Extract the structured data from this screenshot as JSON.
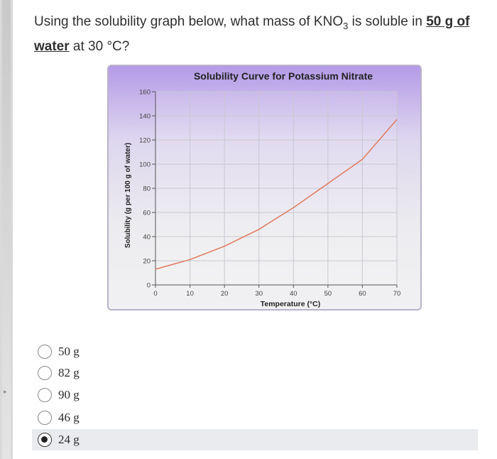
{
  "question": {
    "part1": "Using the solubility graph below, what mass of KNO",
    "subscript": "3",
    "part2": " is soluble in ",
    "emphasis": "50 g of water",
    "part3": " at 30 °C?"
  },
  "answers": [
    {
      "label": "50 g",
      "selected": false
    },
    {
      "label": "82 g",
      "selected": false
    },
    {
      "label": "90 g",
      "selected": false
    },
    {
      "label": "46 g",
      "selected": false
    },
    {
      "label": "24 g",
      "selected": true
    }
  ],
  "chart_data": {
    "type": "line",
    "title": "Solubility Curve for Potassium Nitrate",
    "xlabel": "Temperature (°C)",
    "ylabel": "Solubility (g per 100 g of water)",
    "xlim": [
      0,
      70
    ],
    "ylim": [
      0,
      160
    ],
    "xticks": [
      0,
      10,
      20,
      30,
      40,
      50,
      60,
      70
    ],
    "yticks": [
      0,
      20,
      40,
      60,
      80,
      100,
      120,
      140,
      160
    ],
    "grid": true,
    "series": [
      {
        "color": "#e07a5f",
        "x": [
          0,
          10,
          20,
          30,
          40,
          50,
          60,
          70
        ],
        "y": [
          13,
          21,
          32,
          46,
          64,
          84,
          104,
          137
        ]
      }
    ]
  }
}
